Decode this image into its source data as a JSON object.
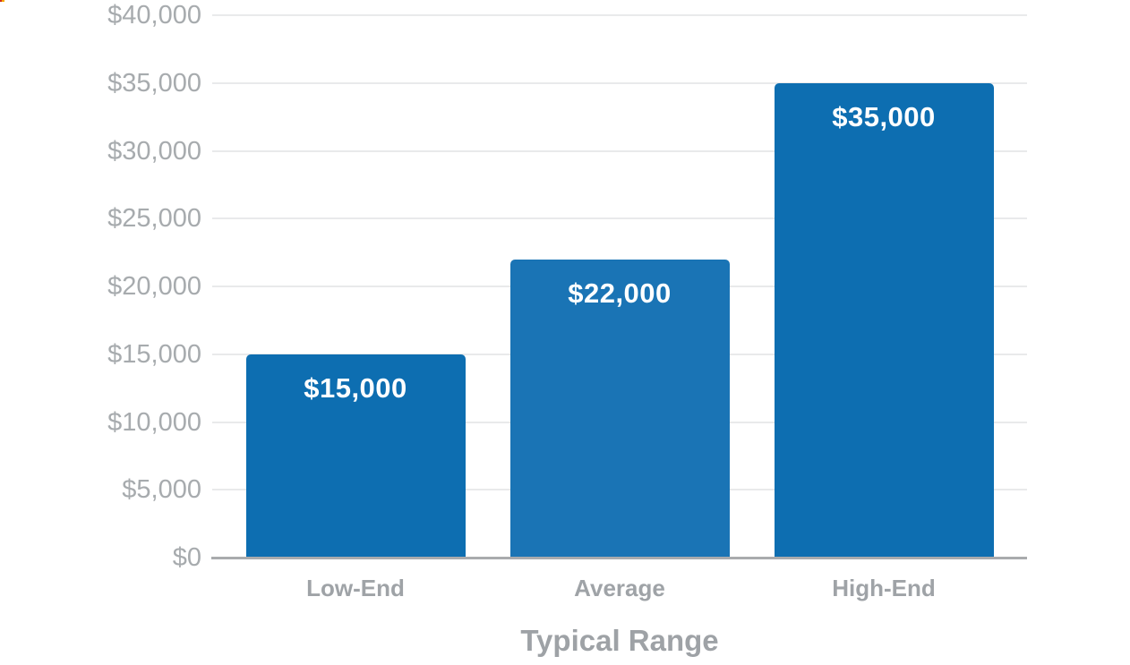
{
  "page": {
    "background": "#ffffff"
  },
  "chart_data": {
    "type": "bar",
    "title": "",
    "xlabel": "Typical Range",
    "ylabel": "",
    "categories": [
      "Low-End",
      "Average",
      "High-End"
    ],
    "values": [
      15000,
      22000,
      35000
    ],
    "bar_labels": [
      "$15,000",
      "$22,000",
      "$35,000"
    ],
    "bar_colors": [
      "#0d6eb1",
      "#1a74b5",
      "#0d6eb1"
    ],
    "ylim": [
      0,
      40000
    ],
    "ytick_interval": 5000,
    "ytick_labels": [
      "$0",
      "$5,000",
      "$10,000",
      "$15,000",
      "$20,000",
      "$25,000",
      "$30,000",
      "$35,000",
      "$40,000"
    ],
    "grid": true,
    "legend": false,
    "styles": {
      "grid_color": "#e9eaeb",
      "axis_color": "#a9abad",
      "tick_label_color": "#a7abae",
      "category_label_color": "#9fa3a7",
      "title_color": "#9ea2a6",
      "bar_label_color": "#ffffff"
    }
  }
}
